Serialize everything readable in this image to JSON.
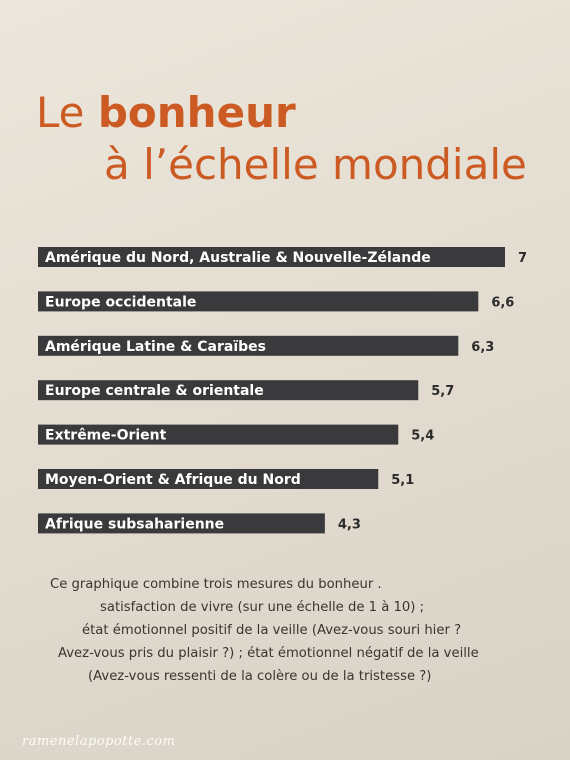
{
  "header": {
    "title_prefix": "Le ",
    "title_bold": "bonheur",
    "title_line2": "à l’échelle mondiale"
  },
  "chart_data": {
    "type": "bar",
    "orientation": "horizontal",
    "title": "Le bonheur à l’échelle mondiale",
    "categories": [
      "Amérique du Nord, Australie & Nouvelle-Zélande",
      "Europe occidentale",
      "Amérique Latine & Caraïbes",
      "Europe centrale & orientale",
      "Extrême-Orient",
      "Moyen-Orient & Afrique du Nord",
      "Afrique subsaharienne"
    ],
    "values": [
      7,
      6.6,
      6.3,
      5.7,
      5.4,
      5.1,
      4.3
    ],
    "value_labels": [
      "7",
      "6,6",
      "6,3",
      "5,7",
      "5,4",
      "5,1",
      "4,3"
    ],
    "bar_color": "#3a3a3c",
    "grid": false,
    "legend": "none"
  },
  "caption": {
    "lines": [
      "Ce graphique combine trois mesures du bonheur .",
      "satisfaction de vivre (sur une échelle de 1 à 10) ;",
      "état émotionnel positif de la veille (Avez-vous souri hier ?",
      "Avez-vous pris du plaisir ?) ; état émotionnel négatif de la veille",
      "(Avez-vous ressenti de la colère ou de la tristesse ?)"
    ]
  },
  "watermark": "ramenelapopotte.com",
  "colors": {
    "title": "#cc5a23",
    "background": "#e6e0d5",
    "bar": "#3a3a3c"
  }
}
